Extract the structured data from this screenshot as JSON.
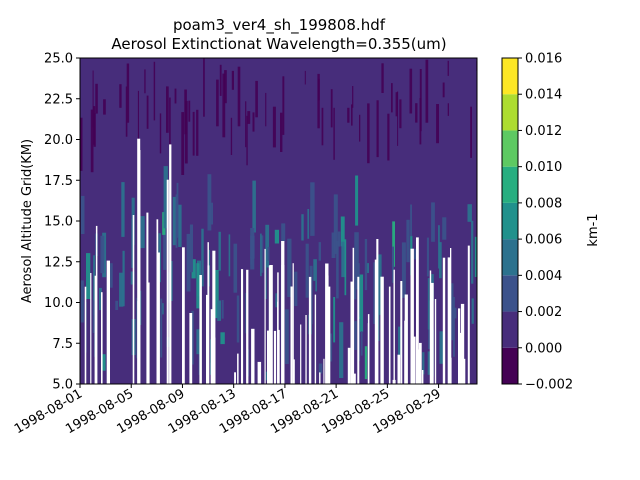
{
  "chart_data": {
    "type": "heatmap",
    "title": "poam3_ver4_sh_199808.hdf",
    "subtitle": "Aerosol Extinctionat Wavelength=0.355(um)",
    "xlabel": "",
    "ylabel": "Aerosol Altitude Grid(KM)",
    "x_range": [
      "1998-08-01",
      "1998-09-01"
    ],
    "x_ticks": [
      "1998-08-01",
      "1998-08-05",
      "1998-08-09",
      "1998-08-13",
      "1998-08-17",
      "1998-08-21",
      "1998-08-25",
      "1998-08-29"
    ],
    "ylim": [
      5.0,
      25.0
    ],
    "y_ticks": [
      "5.0",
      "7.5",
      "10.0",
      "12.5",
      "15.0",
      "17.5",
      "20.0",
      "22.5",
      "25.0"
    ],
    "colorbar": {
      "label": "km-1",
      "levels": [
        -0.002,
        0.0,
        0.002,
        0.004,
        0.006,
        0.008,
        0.01,
        0.012,
        0.014,
        0.016
      ],
      "tick_labels": [
        "−0.002",
        "0.000",
        "0.002",
        "0.004",
        "0.006",
        "0.008",
        "0.010",
        "0.012",
        "0.014",
        "0.016"
      ],
      "colors": [
        "#440154",
        "#472d7b",
        "#3b528b",
        "#2c728e",
        "#21918c",
        "#28ae80",
        "#5ec962",
        "#addc30",
        "#fde725"
      ]
    },
    "dominant_value": 0.001,
    "grid": false
  }
}
